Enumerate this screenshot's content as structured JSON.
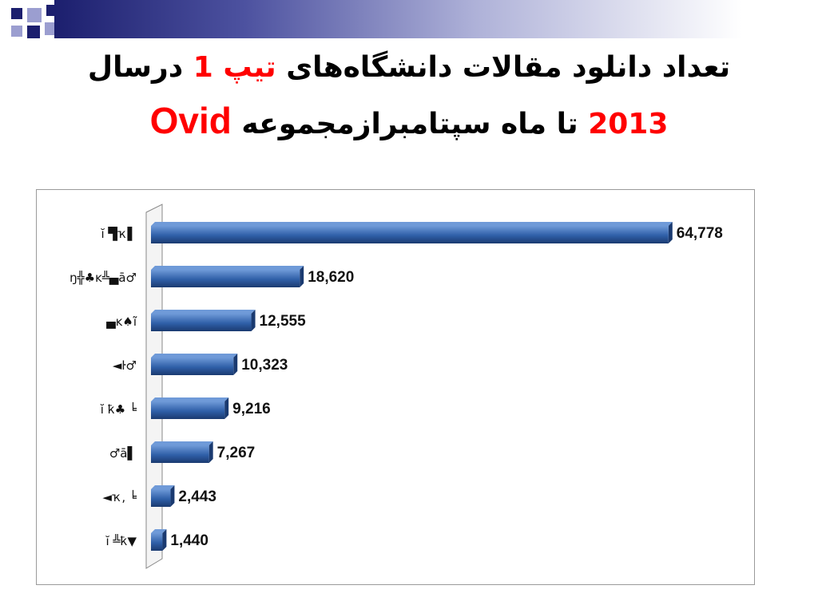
{
  "slide": {
    "title_line1_black": "تعداد دانلود مقالات دانشگاه‌های ",
    "title_line1_red": "تیپ 1",
    "title_line1_end": " درسال",
    "title_line2_red_year": "2013",
    "title_line2_black": " تا ماه سپتامبرازمجموعه ",
    "title_line2_ovid": "Ovid"
  },
  "colors": {
    "bar": "#2f5fa8",
    "bar_dark": "#1a3a70",
    "bar_light": "#6f9ad8",
    "accent_red": "#ff0000",
    "navy": "#1c1f6e"
  },
  "chart_data": {
    "type": "bar",
    "orientation": "horizontal",
    "categories": [
      "ĭ ▜ҡ▌",
      "ŋ╬♣ĸ╩▄ā♂",
      "▄ĸ♠ĩ",
      "◄ŀ♂",
      "ĭ ҟ♣ ╘",
      "♂ā▌",
      "◄ҡ, ╘",
      "ĭ ╩ҟ▼"
    ],
    "values": [
      64778,
      18620,
      12555,
      10323,
      9216,
      7267,
      2443,
      1440
    ],
    "value_labels": [
      "64,778",
      "18,620",
      "12,555",
      "10,323",
      "9,216",
      "7,267",
      "2,443",
      "1,440"
    ],
    "xlim": [
      0,
      67000
    ],
    "grid": false
  }
}
